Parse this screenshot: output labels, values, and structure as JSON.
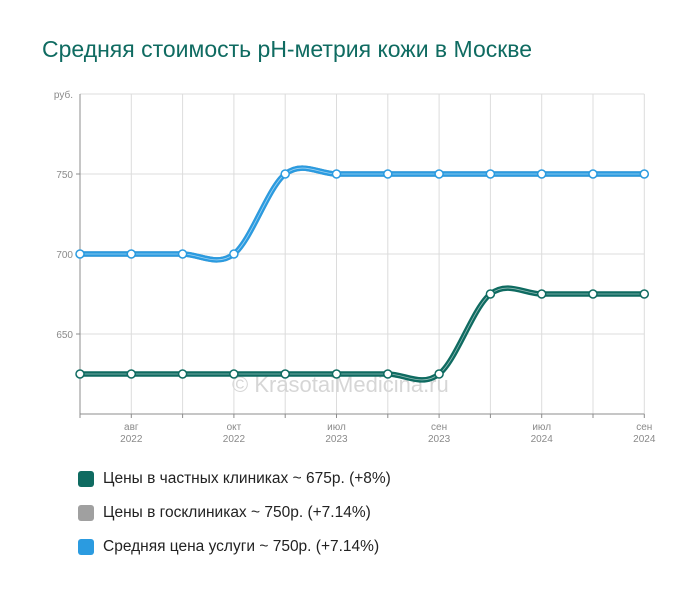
{
  "colors": {
    "title": "#0f6b61",
    "private": "#0f6b61",
    "public": "#a0a0a0",
    "average": "#2b9be0",
    "grid": "#dcdcdc"
  },
  "chart_data": {
    "type": "line",
    "title": "Средняя стоимость pH-метрия кожи в Москве",
    "y_unit_label": "руб.",
    "ylim": [
      600,
      800
    ],
    "y_ticks": [
      650,
      700,
      750
    ],
    "x_ticks": [
      {
        "month": "авг",
        "year": "2022",
        "index": 1
      },
      {
        "month": "окт",
        "year": "2022",
        "index": 3
      },
      {
        "month": "июл",
        "year": "2023",
        "index": 5
      },
      {
        "month": "сен",
        "year": "2023",
        "index": 7
      },
      {
        "month": "июл",
        "year": "2024",
        "index": 9
      },
      {
        "month": "сен",
        "year": "2024",
        "index": 11
      }
    ],
    "n_points": 12,
    "grid": true,
    "legend_position": "bottom",
    "watermark": "© KrasotaiMedicina.ru",
    "series": [
      {
        "key": "private",
        "name": "Цены в частных клиниках ~ 675р. (+8%)",
        "values": [
          625,
          625,
          625,
          625,
          625,
          625,
          625,
          625,
          675,
          675,
          675,
          675
        ]
      },
      {
        "key": "public",
        "name": "Цены в госклиниках ~ 750р. (+7.14%)",
        "values": [
          700,
          700,
          700,
          700,
          750,
          750,
          750,
          750,
          750,
          750,
          750,
          750
        ]
      },
      {
        "key": "average",
        "name": "Средняя цена услуги ~ 750р. (+7.14%)",
        "values": [
          700,
          700,
          700,
          700,
          750,
          750,
          750,
          750,
          750,
          750,
          750,
          750
        ]
      }
    ]
  }
}
